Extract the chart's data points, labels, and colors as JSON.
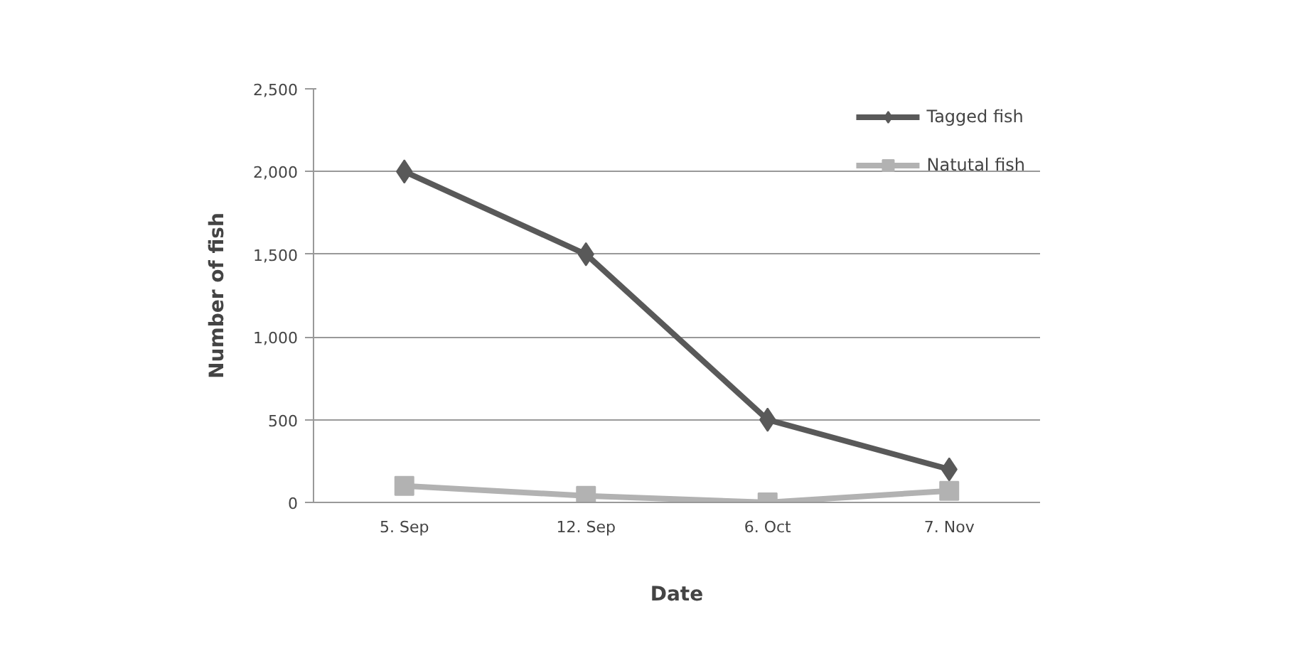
{
  "chart_data": {
    "type": "line",
    "xlabel": "Date",
    "ylabel": "Number of fish",
    "categories": [
      "5. Sep",
      "12. Sep",
      "6. Oct",
      "7. Nov"
    ],
    "series": [
      {
        "name": "Tagged fish",
        "color": "#595959",
        "values": [
          2000,
          1500,
          500,
          200
        ],
        "marker": "diamond"
      },
      {
        "name": "Natutal fish",
        "color": "#b2b2b2",
        "values": [
          100,
          40,
          0,
          70
        ],
        "marker": "square"
      }
    ],
    "ylim": [
      0,
      2500
    ],
    "yticks": [
      {
        "value": 0,
        "label": "0"
      },
      {
        "value": 500,
        "label": "500"
      },
      {
        "value": 1000,
        "label": "1,000"
      },
      {
        "value": 1500,
        "label": "1,500"
      },
      {
        "value": 2000,
        "label": "2,000"
      },
      {
        "value": 2500,
        "label": "2,500"
      }
    ],
    "grid": "y",
    "legend": "top right"
  }
}
